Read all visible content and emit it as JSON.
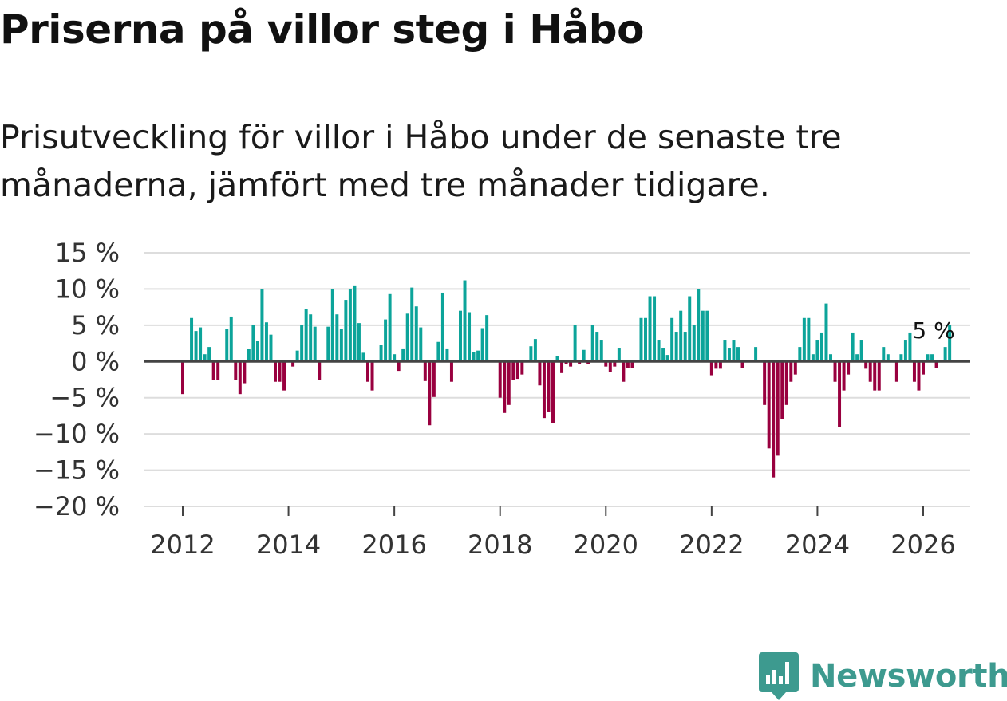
{
  "title": "Priserna på villor steg i Håbo",
  "subtitle": "Prisutveckling för villor i Håbo under de senaste tre månaderna, jämfört med tre månader tidigare.",
  "brand": {
    "name": "Newsworthy",
    "color": "#3d9a8f"
  },
  "colors": {
    "positive": "#0ca49a",
    "negative": "#99003f",
    "grid": "#dddddd",
    "zero_line": "#444444"
  },
  "chart_data": {
    "type": "bar",
    "title": "",
    "xlabel": "",
    "ylabel": "",
    "ylim": [
      -20,
      15
    ],
    "y_ticks": [
      15,
      10,
      5,
      0,
      -5,
      -10,
      -15,
      -20
    ],
    "y_tick_labels": [
      "15 %",
      "10 %",
      "5 %",
      "0 %",
      "−5 %",
      "−10 %",
      "−15 %",
      "−20 %"
    ],
    "x_ticks": [
      2012,
      2014,
      2016,
      2018,
      2020,
      2022,
      2024,
      2026
    ],
    "x_tick_labels": [
      "2012",
      "2014",
      "2016",
      "2018",
      "2020",
      "2022",
      "2024",
      "2026"
    ],
    "start": "2012-01",
    "frequency": "monthly",
    "annotation": {
      "text": "5 %",
      "index": 170
    },
    "values": [
      -4.5,
      0,
      6,
      4.2,
      4.7,
      1,
      2,
      -2.5,
      -2.5,
      0,
      4.5,
      6.2,
      -2.5,
      -4.5,
      -3,
      1.7,
      5,
      2.8,
      10,
      5.4,
      3.7,
      -2.8,
      -2.8,
      -4,
      0,
      -0.7,
      1.5,
      5,
      7.2,
      6.5,
      4.8,
      -2.6,
      0,
      4.8,
      10,
      6.5,
      4.5,
      8.5,
      10,
      10.5,
      5.3,
      1.2,
      -2.8,
      -4,
      0,
      2.3,
      5.8,
      9.3,
      1,
      -1.3,
      1.8,
      6.6,
      10.2,
      7.6,
      4.7,
      -2.7,
      -8.8,
      -4.9,
      2.7,
      9.5,
      1.8,
      -2.8,
      0,
      7,
      11.2,
      6.8,
      1.3,
      1.5,
      4.6,
      6.4,
      0,
      0,
      -5,
      -7.1,
      -6,
      -2.6,
      -2.4,
      -1.8,
      0,
      2.1,
      3.1,
      -3.3,
      -7.8,
      -6.9,
      -8.5,
      0.8,
      -1.6,
      -0.3,
      -0.7,
      5,
      -0.3,
      1.6,
      -0.4,
      5,
      4.1,
      3,
      -0.7,
      -1.5,
      -0.7,
      1.9,
      -2.8,
      -0.9,
      -0.9,
      0,
      6,
      6,
      9,
      9,
      3,
      1.9,
      0.9,
      6,
      4.1,
      7,
      4.1,
      9,
      5,
      10,
      7,
      7,
      -1.9,
      -1,
      -1,
      3,
      1.9,
      3,
      2,
      -0.9,
      0,
      0,
      2,
      0,
      -6,
      -12,
      -16,
      -13,
      -8,
      -6,
      -2.8,
      -1.8,
      2,
      6,
      6,
      1,
      3,
      4,
      8,
      1,
      -2.8,
      -9,
      -4,
      -1.8,
      4,
      1,
      3,
      -1,
      -2.8,
      -4,
      -4,
      2,
      1,
      0,
      -2.8,
      1,
      3,
      4,
      -2.8,
      -4,
      -1.8,
      1,
      1,
      -0.9,
      0,
      2,
      5
    ]
  }
}
